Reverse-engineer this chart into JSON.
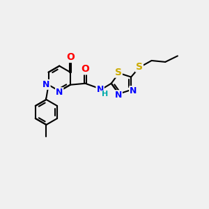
{
  "bg_color": "#f0f0f0",
  "bond_color": "#000000",
  "bond_width": 1.5,
  "colors": {
    "N": "#0000ff",
    "O": "#ff0000",
    "S": "#ccaa00",
    "NH": "#00aaaa",
    "C": "#000000"
  },
  "xlim": [
    -2.5,
    5.0
  ],
  "ylim": [
    -4.0,
    2.5
  ]
}
